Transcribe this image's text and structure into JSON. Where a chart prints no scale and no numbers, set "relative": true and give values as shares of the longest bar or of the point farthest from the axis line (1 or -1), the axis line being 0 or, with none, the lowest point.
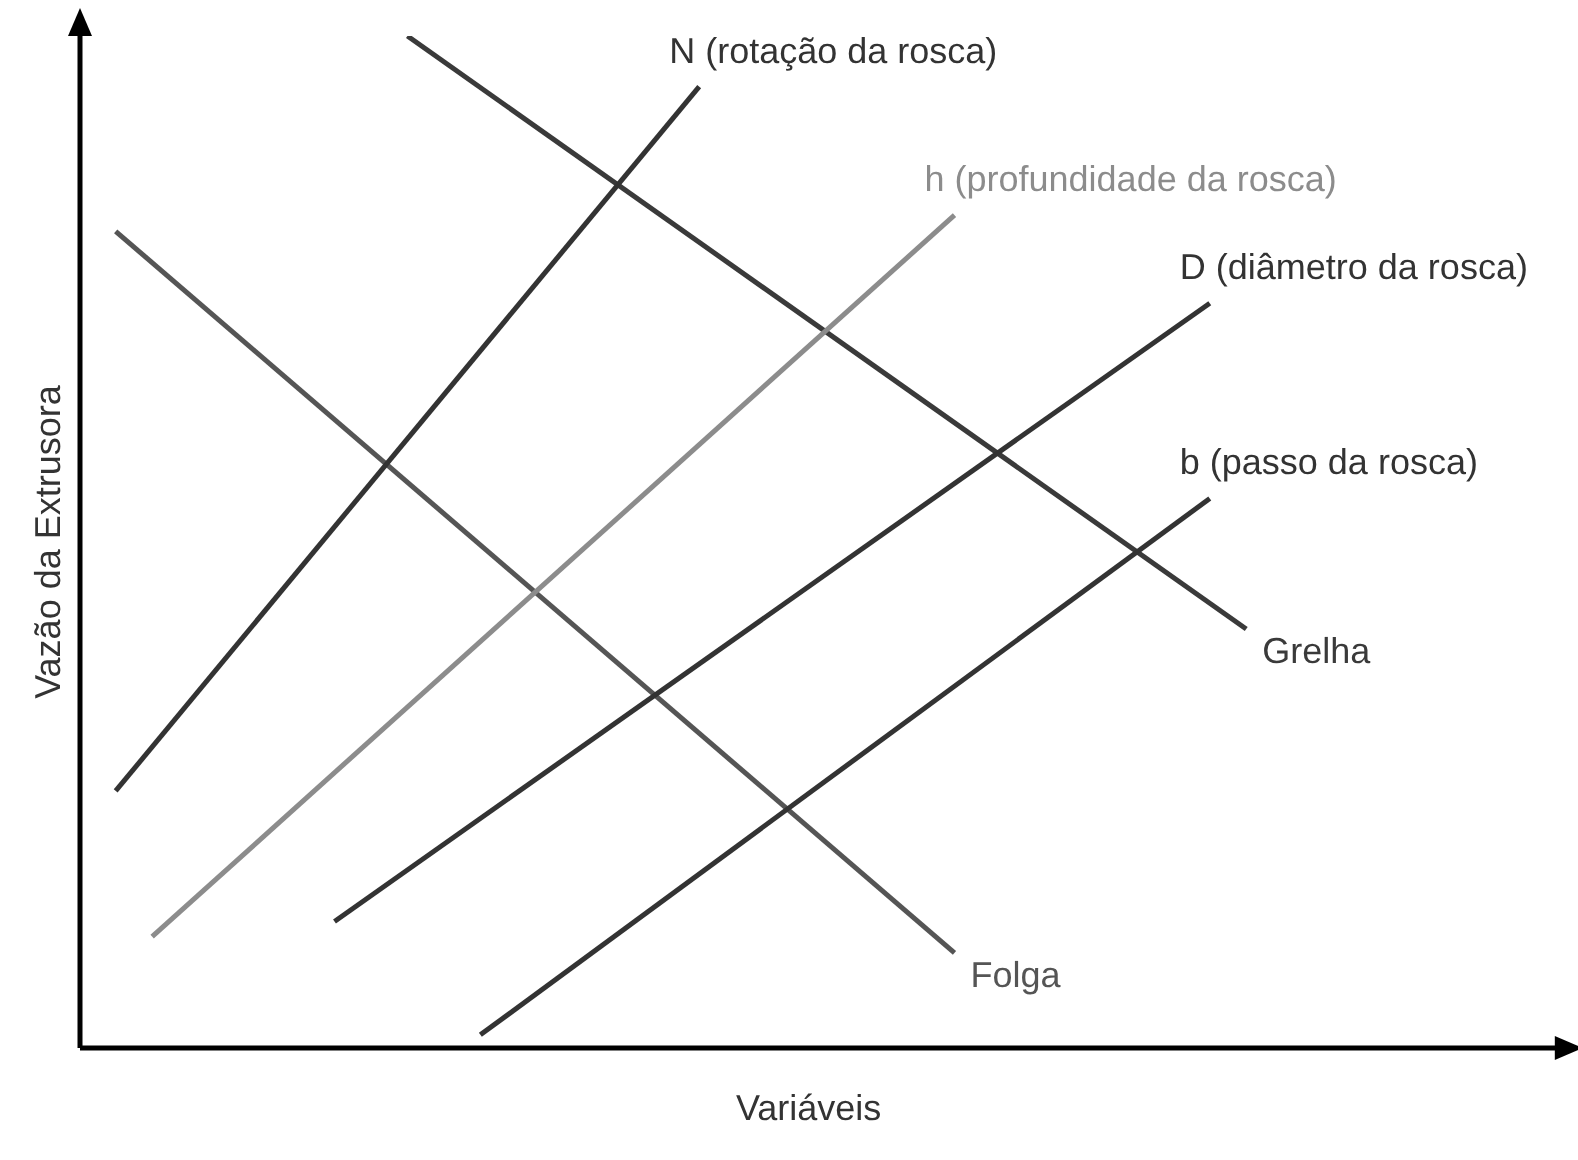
{
  "chart_data": {
    "type": "line",
    "relative": true,
    "xlabel": "Variáveis",
    "ylabel": "Vazão da Extrusora",
    "grid": false,
    "legend": false,
    "marker": "none",
    "line_style": "solid",
    "categories": [
      null,
      null,
      null,
      null,
      null,
      null,
      null,
      null,
      null,
      null,
      null,
      null,
      null,
      null,
      null,
      null,
      null,
      null,
      null,
      null,
      null,
      null,
      null,
      null,
      null,
      null,
      null,
      null,
      null,
      null,
      null,
      null,
      null,
      null,
      null,
      null,
      null,
      null,
      null,
      null,
      null
    ],
    "series": [
      {
        "name": "N (rotação da rosca)",
        "color": "#333333",
        "values": [
          null,
          0.254,
          null,
          null,
          null,
          null,
          null,
          null,
          null,
          null,
          null,
          null,
          null,
          null,
          null,
          null,
          null,
          0.95,
          null,
          null,
          null,
          null,
          null,
          null,
          null,
          null,
          null,
          null,
          null,
          null,
          null,
          null,
          null,
          null,
          null,
          null,
          null,
          null,
          null,
          null,
          null
        ]
      },
      {
        "name": "h (profundidade da rosca)",
        "color": "#8c8c8c",
        "values": [
          null,
          null,
          0.11,
          null,
          null,
          null,
          null,
          null,
          null,
          null,
          null,
          null,
          null,
          null,
          null,
          null,
          null,
          null,
          null,
          null,
          null,
          null,
          null,
          null,
          0.823,
          null,
          null,
          null,
          null,
          null,
          null,
          null,
          null,
          null,
          null,
          null,
          null,
          null,
          null,
          null,
          null
        ]
      },
      {
        "name": "D (diâmetro da rosca)",
        "color": "#333333",
        "values": [
          null,
          null,
          null,
          null,
          null,
          null,
          null,
          0.125,
          null,
          null,
          null,
          null,
          null,
          null,
          null,
          null,
          null,
          null,
          null,
          null,
          null,
          null,
          null,
          null,
          null,
          null,
          null,
          null,
          null,
          null,
          null,
          0.736,
          null,
          null,
          null,
          null,
          null,
          null,
          null,
          null,
          null
        ]
      },
      {
        "name": "b (passo da rosca)",
        "color": "#333333",
        "values": [
          null,
          null,
          null,
          null,
          null,
          null,
          null,
          null,
          null,
          null,
          null,
          0.013,
          null,
          null,
          null,
          null,
          null,
          null,
          null,
          null,
          null,
          null,
          null,
          null,
          null,
          null,
          null,
          null,
          null,
          null,
          null,
          0.543,
          null,
          null,
          null,
          null,
          null,
          null,
          null,
          null,
          null
        ]
      },
      {
        "name": "Grelha",
        "color": "#3a3a3a",
        "values": [
          null,
          null,
          null,
          null,
          null,
          null,
          null,
          null,
          null,
          1,
          null,
          null,
          null,
          null,
          null,
          null,
          null,
          null,
          null,
          null,
          null,
          null,
          null,
          null,
          null,
          null,
          null,
          null,
          null,
          null,
          null,
          null,
          0.414,
          null,
          null,
          null,
          null,
          null,
          null,
          null,
          null
        ]
      },
      {
        "name": "Folga",
        "color": "#555555",
        "values": [
          null,
          0.807,
          null,
          null,
          null,
          null,
          null,
          null,
          null,
          null,
          null,
          null,
          null,
          null,
          null,
          null,
          null,
          null,
          null,
          null,
          null,
          null,
          null,
          null,
          0.094,
          null,
          null,
          null,
          null,
          null,
          null,
          null,
          null,
          null,
          null,
          null,
          null,
          null,
          null,
          null,
          null
        ]
      }
    ]
  }
}
